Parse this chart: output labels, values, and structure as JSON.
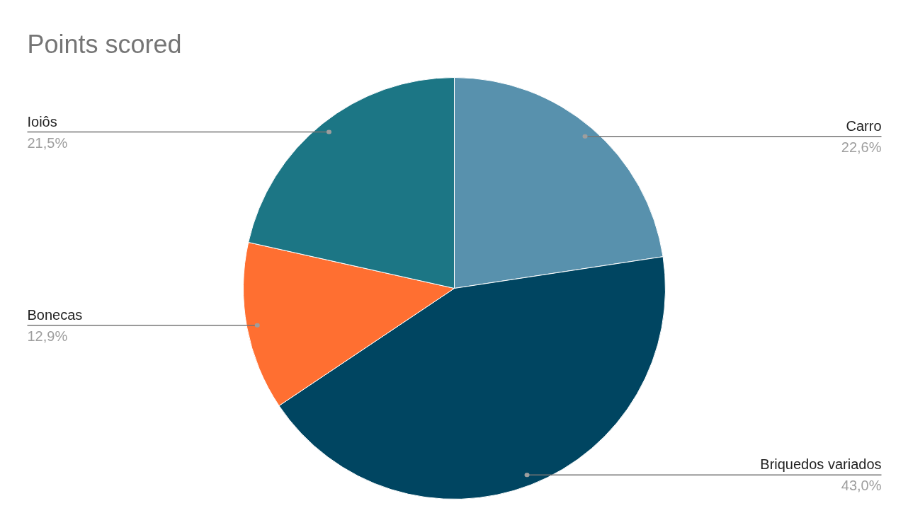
{
  "chart_data": {
    "type": "pie",
    "title": "Points scored",
    "categories": [
      "Carro",
      "Briquedos variados",
      "Bonecas",
      "Ioiôs"
    ],
    "values": [
      22.6,
      43.0,
      12.9,
      21.5
    ],
    "colors": [
      "#5891ad",
      "#004561",
      "#ff6f31",
      "#1c7685"
    ],
    "value_labels": [
      "22,6%",
      "43,0%",
      "12,9%",
      "21,5%"
    ]
  }
}
